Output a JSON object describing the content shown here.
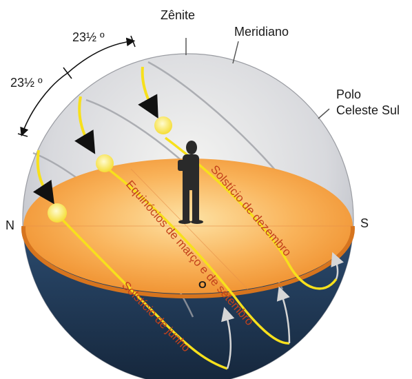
{
  "labels": {
    "zenith": "Zênite",
    "meridian": "Meridiano",
    "south_pole_line1": "Polo",
    "south_pole_line2": "Celeste Sul",
    "north": "N",
    "south": "S",
    "east": "O",
    "angle_upper": "23½ º",
    "angle_lower": "23½ º"
  },
  "paths": {
    "december": "Solstício de dezembro",
    "equinox": "Equinócios de março e de setembro",
    "june": "Solstício de junho"
  },
  "colors": {
    "sky": "#d9dade",
    "horizon_disc": "#f6a447",
    "below_horizon": "#1f3551",
    "sun_path": "#f7e01c",
    "sun": "#fff07a",
    "path_label": "#c3421b",
    "person": "#2a2a2a"
  },
  "icons": {
    "sun": "sun-icon",
    "observer": "person-icon"
  }
}
